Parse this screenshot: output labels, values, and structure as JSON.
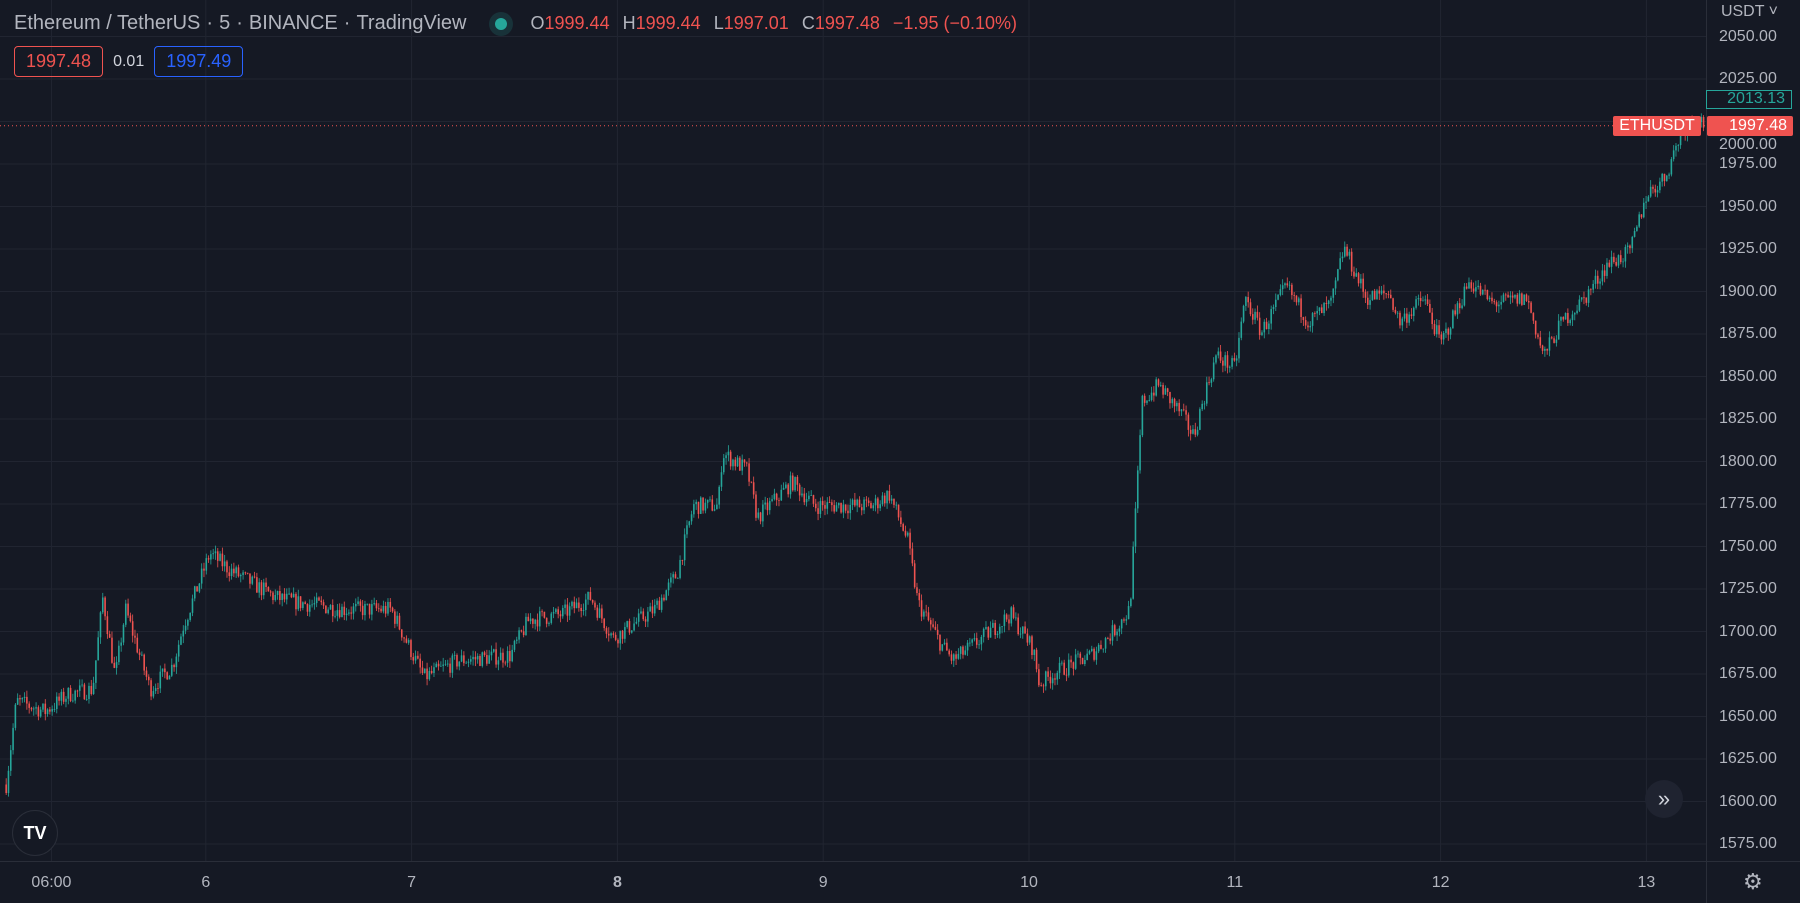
{
  "header": {
    "symbol": "Ethereum / TetherUS",
    "interval": "5",
    "exchange": "BINANCE",
    "source": "TradingView",
    "open_label": "O",
    "open": "1999.44",
    "high_label": "H",
    "high": "1999.44",
    "low_label": "L",
    "low": "1997.01",
    "close_label": "C",
    "close": "1997.48",
    "change": "−1.95 (−0.10%)"
  },
  "trade": {
    "sell": "1997.48",
    "spread": "0.01",
    "buy": "1997.49"
  },
  "price_axis": {
    "currency": "USDT",
    "ticks": [
      "2050.00",
      "2025.00",
      "2000.00",
      "1975.00",
      "1950.00",
      "1925.00",
      "1900.00",
      "1875.00",
      "1850.00",
      "1825.00",
      "1800.00",
      "1775.00",
      "1750.00",
      "1725.00",
      "1700.00",
      "1675.00",
      "1650.00",
      "1625.00",
      "1600.00",
      "1575.00"
    ],
    "high_marker": "2013.13",
    "last_symbol": "ETHUSDT",
    "last_price": "1997.48"
  },
  "time_axis": {
    "ticks": [
      "06:00",
      "6",
      "7",
      "8",
      "9",
      "10",
      "11",
      "12",
      "13"
    ]
  },
  "logo": "17",
  "colors": {
    "up": "#26a69a",
    "down": "#ef5350",
    "background": "#151924",
    "grid": "#212531",
    "buy": "#2962ff"
  },
  "chart_data": {
    "type": "candlestick",
    "title": "Ethereum / TetherUS · 5 · BINANCE",
    "xlabel": "",
    "ylabel": "",
    "x_unit": "day of month",
    "ylim": [
      1562,
      2057
    ],
    "grid": true,
    "last_price": 1997.48,
    "price_path": [
      [
        5.03,
        1610
      ],
      [
        5.08,
        1659
      ],
      [
        5.22,
        1653
      ],
      [
        5.33,
        1663
      ],
      [
        5.45,
        1666
      ],
      [
        5.5,
        1720
      ],
      [
        5.56,
        1673
      ],
      [
        5.61,
        1713
      ],
      [
        5.73,
        1666
      ],
      [
        5.84,
        1680
      ],
      [
        5.89,
        1703
      ],
      [
        6.02,
        1746
      ],
      [
        6.12,
        1736
      ],
      [
        6.34,
        1720
      ],
      [
        6.45,
        1717
      ],
      [
        6.67,
        1713
      ],
      [
        6.9,
        1713
      ],
      [
        6.98,
        1693
      ],
      [
        7.06,
        1673
      ],
      [
        7.23,
        1683
      ],
      [
        7.48,
        1686
      ],
      [
        7.57,
        1707
      ],
      [
        7.73,
        1710
      ],
      [
        7.87,
        1720
      ],
      [
        7.98,
        1696
      ],
      [
        8.18,
        1713
      ],
      [
        8.29,
        1734
      ],
      [
        8.37,
        1774
      ],
      [
        8.49,
        1774
      ],
      [
        8.51,
        1805
      ],
      [
        8.63,
        1795
      ],
      [
        8.68,
        1767
      ],
      [
        8.85,
        1788
      ],
      [
        8.96,
        1774
      ],
      [
        9.07,
        1774
      ],
      [
        9.24,
        1774
      ],
      [
        9.32,
        1781
      ],
      [
        9.41,
        1754
      ],
      [
        9.46,
        1717
      ],
      [
        9.57,
        1693
      ],
      [
        9.63,
        1683
      ],
      [
        9.74,
        1693
      ],
      [
        9.91,
        1710
      ],
      [
        10.02,
        1690
      ],
      [
        10.05,
        1669
      ],
      [
        10.13,
        1676
      ],
      [
        10.3,
        1686
      ],
      [
        10.41,
        1700
      ],
      [
        10.49,
        1713
      ],
      [
        10.52,
        1774
      ],
      [
        10.55,
        1835
      ],
      [
        10.63,
        1845
      ],
      [
        10.74,
        1828
      ],
      [
        10.8,
        1815
      ],
      [
        10.86,
        1842
      ],
      [
        10.91,
        1862
      ],
      [
        11.0,
        1855
      ],
      [
        11.05,
        1896
      ],
      [
        11.13,
        1876
      ],
      [
        11.25,
        1903
      ],
      [
        11.36,
        1882
      ],
      [
        11.47,
        1893
      ],
      [
        11.53,
        1926
      ],
      [
        11.64,
        1896
      ],
      [
        11.75,
        1899
      ],
      [
        11.8,
        1882
      ],
      [
        11.92,
        1896
      ],
      [
        12.0,
        1869
      ],
      [
        12.14,
        1906
      ],
      [
        12.25,
        1893
      ],
      [
        12.42,
        1896
      ],
      [
        12.5,
        1862
      ],
      [
        12.59,
        1882
      ],
      [
        12.7,
        1896
      ],
      [
        12.81,
        1916
      ],
      [
        12.92,
        1923
      ],
      [
        13.0,
        1957
      ],
      [
        13.09,
        1967
      ],
      [
        13.17,
        1994
      ],
      [
        13.25,
        2004
      ],
      [
        13.28,
        1997.48
      ]
    ]
  }
}
